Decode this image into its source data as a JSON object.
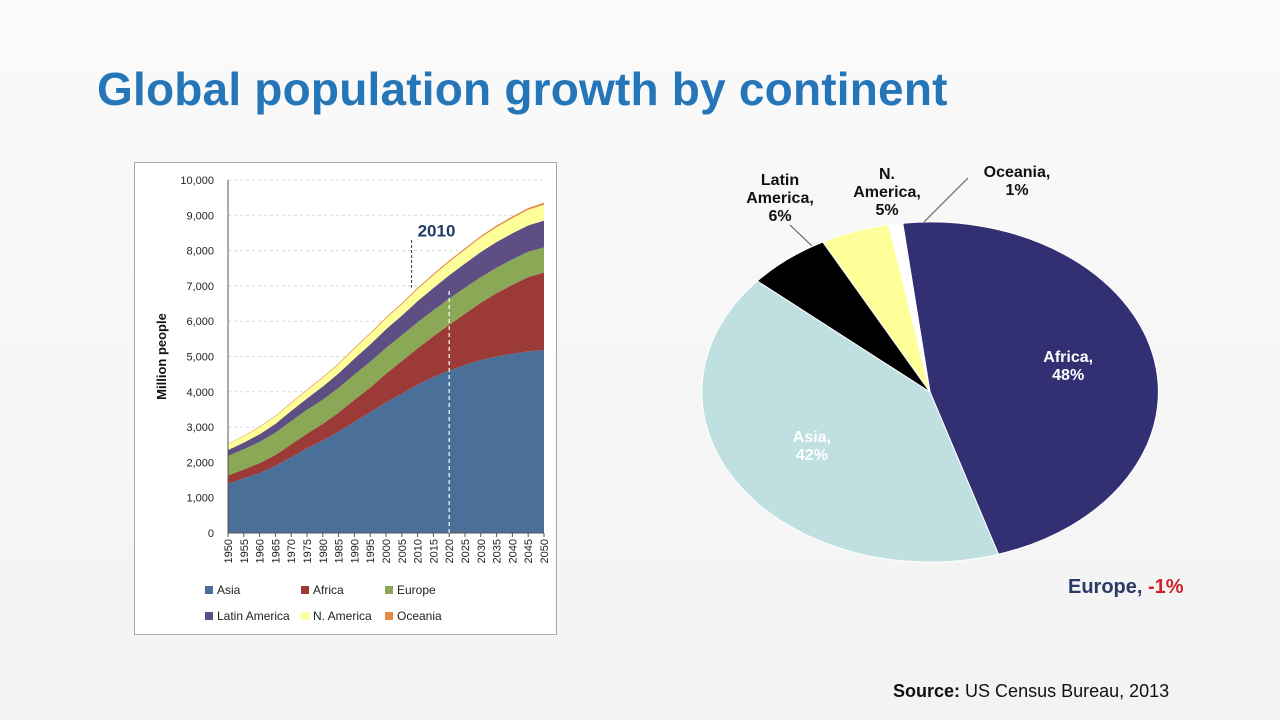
{
  "slide": {
    "title": "Global population growth by continent",
    "source_label": "Source:",
    "source_text": "US Census Bureau, 2013"
  },
  "chart_data": [
    {
      "type": "area",
      "stacked": true,
      "title": "",
      "ylabel": "Million people",
      "xlabel": "",
      "ylim": [
        0,
        10000
      ],
      "yticks": [
        "0",
        "1,000",
        "2,000",
        "3,000",
        "4,000",
        "5,000",
        "6,000",
        "7,000",
        "8,000",
        "9,000",
        "10,000"
      ],
      "x": [
        1950,
        1955,
        1960,
        1965,
        1970,
        1975,
        1980,
        1985,
        1990,
        1995,
        2000,
        2005,
        2010,
        2015,
        2020,
        2025,
        2030,
        2035,
        2040,
        2045,
        2050
      ],
      "annotation": {
        "label": "2010",
        "x": 2010
      },
      "marker_line_x": 2020,
      "series": [
        {
          "name": "Asia",
          "color": "#4a6f98",
          "values": [
            1400,
            1550,
            1700,
            1900,
            2150,
            2400,
            2620,
            2870,
            3150,
            3420,
            3700,
            3950,
            4200,
            4420,
            4600,
            4760,
            4900,
            5000,
            5080,
            5150,
            5180
          ]
        },
        {
          "name": "Africa",
          "color": "#9c3a38",
          "values": [
            230,
            250,
            280,
            310,
            360,
            410,
            470,
            540,
            620,
            700,
            810,
            920,
            1030,
            1150,
            1300,
            1450,
            1620,
            1790,
            1950,
            2100,
            2200
          ]
        },
        {
          "name": "Europe",
          "color": "#8aa855",
          "values": [
            550,
            570,
            600,
            630,
            660,
            680,
            690,
            700,
            720,
            730,
            730,
            730,
            740,
            740,
            740,
            735,
            730,
            725,
            720,
            715,
            710
          ]
        },
        {
          "name": "Latin America",
          "color": "#5d4f83",
          "values": [
            170,
            190,
            220,
            250,
            290,
            320,
            370,
            410,
            450,
            490,
            530,
            560,
            600,
            630,
            660,
            690,
            710,
            730,
            740,
            750,
            760
          ]
        },
        {
          "name": "N. America",
          "color": "#ffff99",
          "values": [
            170,
            180,
            200,
            210,
            220,
            230,
            250,
            260,
            280,
            300,
            310,
            320,
            340,
            360,
            380,
            390,
            410,
            420,
            430,
            440,
            450
          ]
        },
        {
          "name": "Oceania",
          "color": "#e38b4b",
          "values": [
            13,
            14,
            16,
            18,
            19,
            21,
            23,
            25,
            27,
            29,
            31,
            33,
            36,
            39,
            41,
            43,
            45,
            47,
            49,
            51,
            53
          ]
        }
      ]
    },
    {
      "type": "pie",
      "title": "",
      "slices": [
        {
          "name": "Africa",
          "pct": 48,
          "label": "Africa,",
          "value_label": "48%",
          "color": "#332f73"
        },
        {
          "name": "Asia",
          "pct": 42,
          "label": "Asia,",
          "value_label": "42%",
          "color": "#bfdfe0"
        },
        {
          "name": "Latin America",
          "pct": 6,
          "label": "Latin America,",
          "value_label": "6%",
          "color": "#000000"
        },
        {
          "name": "N. America",
          "pct": 5,
          "label": "N. America,",
          "value_label": "5%",
          "color": "#ffff99"
        },
        {
          "name": "Oceania",
          "pct": 1,
          "label": "Oceania,",
          "value_label": "1%",
          "color": "#ffffff"
        }
      ],
      "note": {
        "name": "Europe,",
        "value": "-1%",
        "name_color": "#2b3a66",
        "value_color": "#d0202a"
      }
    }
  ]
}
